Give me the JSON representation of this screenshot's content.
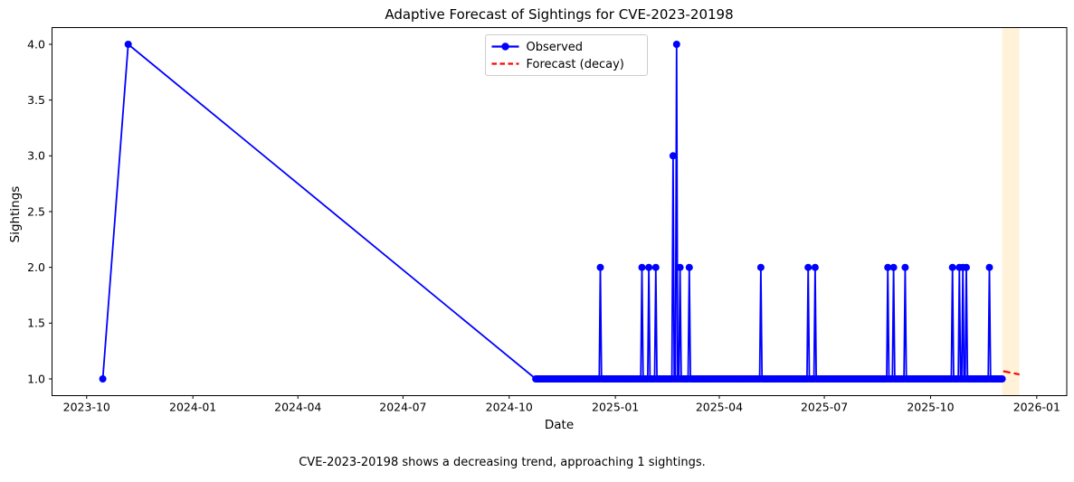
{
  "figure": {
    "title": "Adaptive Forecast of Sightings for CVE-2023-20198",
    "caption": "CVE-2023-20198 shows a decreasing trend, approaching 1 sightings.",
    "background_color": "#ffffff"
  },
  "chart_data": {
    "type": "line",
    "title": "Adaptive Forecast of Sightings for CVE-2023-20198",
    "xlabel": "Date",
    "ylabel": "Sightings",
    "xlim": [
      "2023-09-01",
      "2026-01-27"
    ],
    "ylim": [
      0.85,
      4.15
    ],
    "grid": false,
    "xticks": [
      {
        "label": "2023-10",
        "date": "2023-10-01"
      },
      {
        "label": "2024-01",
        "date": "2024-01-01"
      },
      {
        "label": "2024-04",
        "date": "2024-04-01"
      },
      {
        "label": "2024-07",
        "date": "2024-07-01"
      },
      {
        "label": "2024-10",
        "date": "2024-10-01"
      },
      {
        "label": "2025-01",
        "date": "2025-01-01"
      },
      {
        "label": "2025-04",
        "date": "2025-04-01"
      },
      {
        "label": "2025-07",
        "date": "2025-07-01"
      },
      {
        "label": "2025-10",
        "date": "2025-10-01"
      },
      {
        "label": "2026-01",
        "date": "2026-01-01"
      }
    ],
    "yticks": [
      1.0,
      1.5,
      2.0,
      2.5,
      3.0,
      3.5,
      4.0
    ],
    "legend": {
      "position": "upper center",
      "entries": [
        {
          "label": "Observed",
          "color": "#0000ff",
          "style": "solid",
          "marker": "circle"
        },
        {
          "label": "Forecast (decay)",
          "color": "#ff0000",
          "style": "dashed",
          "marker": "none"
        }
      ]
    },
    "series": [
      {
        "name": "Observed",
        "color": "#0000ff",
        "style": "solid-with-markers",
        "sparse_points": [
          [
            "2023-10-15",
            1
          ],
          [
            "2023-11-06",
            4
          ]
        ],
        "daily_run": {
          "start": "2024-10-24",
          "end": "2025-12-02",
          "default_value": 1
        },
        "spike_days": {
          "2024-12-19": 2,
          "2025-01-24": 2,
          "2025-01-30": 2,
          "2025-02-05": 2,
          "2025-02-20": 3,
          "2025-02-23": 4,
          "2025-02-26": 2,
          "2025-03-06": 2,
          "2025-05-07": 2,
          "2025-06-17": 2,
          "2025-06-23": 2,
          "2025-08-25": 2,
          "2025-08-30": 2,
          "2025-09-09": 2,
          "2025-10-20": 2,
          "2025-10-26": 2,
          "2025-10-29": 2,
          "2025-11-01": 2,
          "2025-11-21": 2
        }
      },
      {
        "name": "Forecast (decay)",
        "color": "#ff0000",
        "style": "dashed",
        "points": [
          [
            "2025-12-03",
            1.07
          ],
          [
            "2025-12-17",
            1.04
          ]
        ]
      }
    ],
    "forecast_band": {
      "start": "2025-12-02",
      "end": "2025-12-17",
      "color": "#ffa500",
      "opacity": 0.15
    }
  }
}
